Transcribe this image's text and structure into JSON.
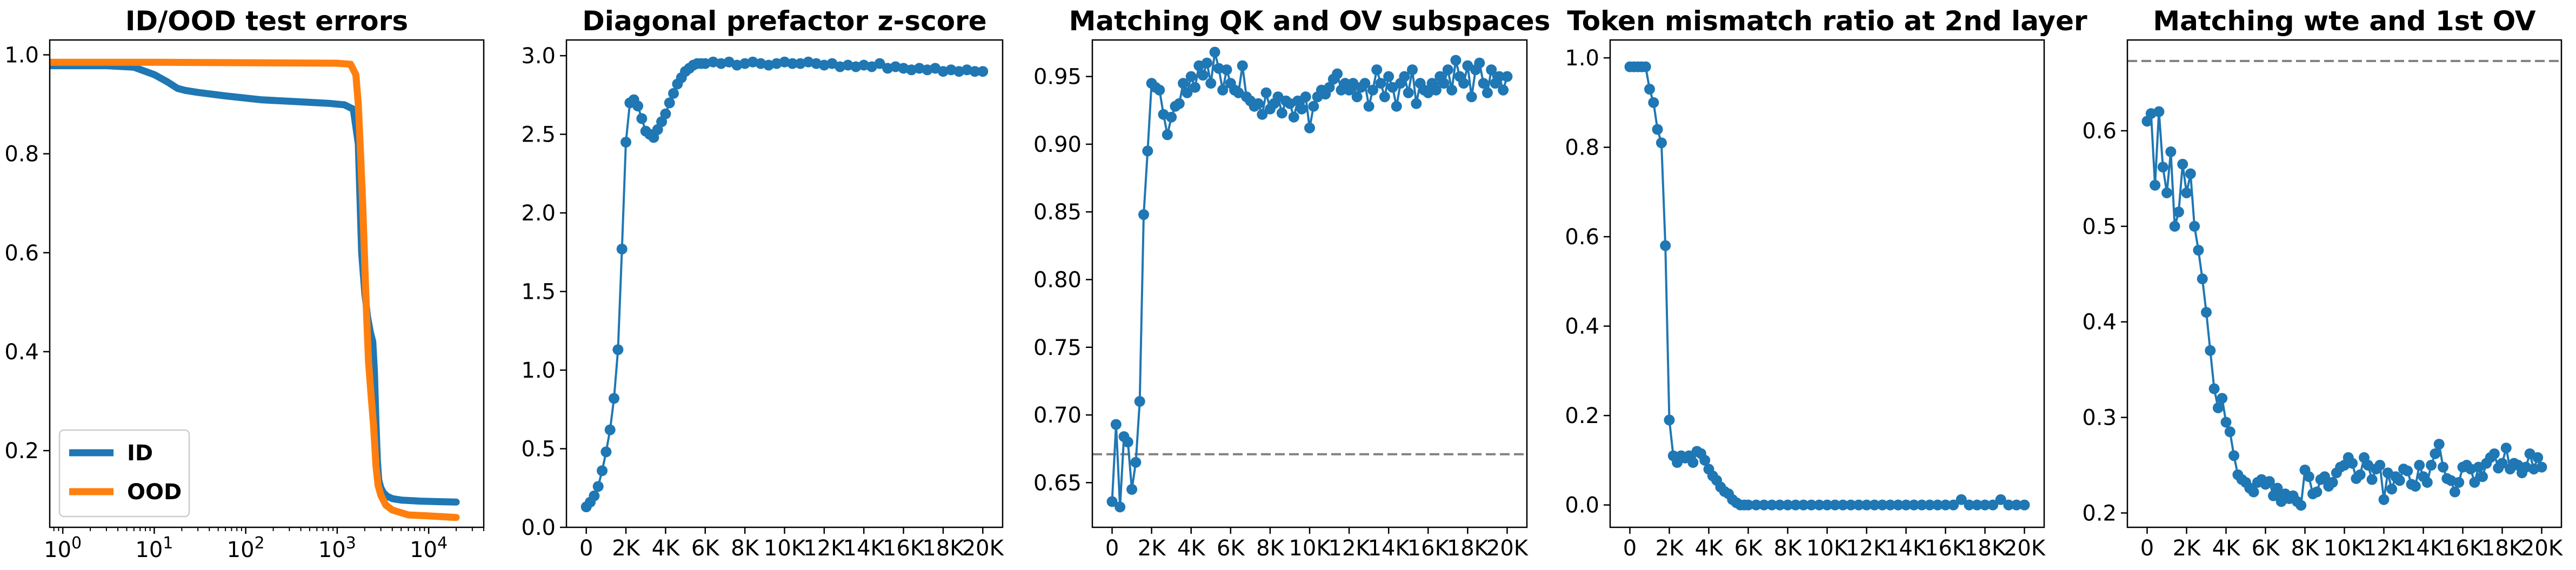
{
  "colors": {
    "blue": "#1f77b4",
    "orange": "#ff7f0e",
    "reference_line": "#808080"
  },
  "chart_data": [
    {
      "type": "line",
      "title": "ID/OOD test errors",
      "xscale": "log",
      "xlim": [
        0.72,
        40000
      ],
      "ylim": [
        0.045,
        1.03
      ],
      "xticks": [
        1,
        10,
        100,
        1000,
        10000
      ],
      "xtick_labels": [
        {
          "base": "10",
          "exp": "0"
        },
        {
          "base": "10",
          "exp": "1"
        },
        {
          "base": "10",
          "exp": "2"
        },
        {
          "base": "10",
          "exp": "3"
        },
        {
          "base": "10",
          "exp": "4"
        }
      ],
      "yticks": [
        0.2,
        0.4,
        0.6,
        0.8,
        1.0
      ],
      "ytick_labels": [
        "0.2",
        "0.4",
        "0.6",
        "0.8",
        "1.0"
      ],
      "legend": {
        "placement": "lower-left"
      },
      "series": [
        {
          "name": "ID",
          "color": "#1f77b4",
          "x": [
            0.72,
            3,
            6,
            10,
            14,
            18,
            22,
            30,
            60,
            150,
            400,
            800,
            1200,
            1500,
            1700,
            1850,
            2000,
            2150,
            2300,
            2450,
            2550,
            2650,
            2750,
            2850,
            3000,
            3200,
            3500,
            4000,
            5000,
            8000,
            12000,
            20000
          ],
          "y": [
            0.978,
            0.978,
            0.975,
            0.96,
            0.945,
            0.932,
            0.928,
            0.924,
            0.917,
            0.909,
            0.905,
            0.902,
            0.899,
            0.89,
            0.82,
            0.6,
            0.52,
            0.47,
            0.44,
            0.42,
            0.36,
            0.26,
            0.18,
            0.14,
            0.125,
            0.115,
            0.108,
            0.103,
            0.1,
            0.098,
            0.097,
            0.096
          ]
        },
        {
          "name": "OOD",
          "color": "#ff7f0e",
          "x": [
            0.72,
            10,
            100,
            1000,
            1400,
            1600,
            1700,
            1800,
            1900,
            2000,
            2100,
            2200,
            2350,
            2500,
            2650,
            2800,
            3000,
            3400,
            4000,
            6000,
            10000,
            20000
          ],
          "y": [
            0.985,
            0.985,
            0.984,
            0.983,
            0.981,
            0.96,
            0.9,
            0.8,
            0.7,
            0.58,
            0.47,
            0.38,
            0.31,
            0.25,
            0.17,
            0.13,
            0.11,
            0.09,
            0.08,
            0.07,
            0.068,
            0.065
          ]
        }
      ]
    },
    {
      "type": "line",
      "title": "Diagonal prefactor z-score",
      "xlim": [
        -1000,
        21000
      ],
      "ylim": [
        0,
        3.1
      ],
      "xticks": [
        0,
        2000,
        4000,
        6000,
        8000,
        10000,
        12000,
        14000,
        16000,
        18000,
        20000
      ],
      "xtick_labels": [
        "0",
        "2K",
        "4K",
        "6K",
        "8K",
        "10K",
        "12K",
        "14K",
        "16K",
        "18K",
        "20K"
      ],
      "yticks": [
        0.0,
        0.5,
        1.0,
        1.5,
        2.0,
        2.5,
        3.0
      ],
      "ytick_labels": [
        "0.0",
        "0.5",
        "1.0",
        "1.5",
        "2.0",
        "2.5",
        "3.0"
      ],
      "markers": true,
      "series": [
        {
          "color": "#1f77b4",
          "x": [
            0,
            200,
            400,
            600,
            800,
            1000,
            1200,
            1400,
            1600,
            1800,
            2000,
            2200,
            2400,
            2600,
            2800,
            3000,
            3200,
            3400,
            3600,
            3800,
            4000,
            4200,
            4400,
            4600,
            4800,
            5000,
            5200,
            5400,
            5600,
            5800,
            6000,
            6400,
            6800,
            7200,
            7600,
            8000,
            8400,
            8800,
            9200,
            9600,
            10000,
            10400,
            10800,
            11200,
            11600,
            12000,
            12400,
            12800,
            13200,
            13600,
            14000,
            14400,
            14800,
            15200,
            15600,
            16000,
            16400,
            16800,
            17200,
            17600,
            18000,
            18400,
            18800,
            19200,
            19600,
            20000
          ],
          "y": [
            0.13,
            0.16,
            0.2,
            0.26,
            0.36,
            0.48,
            0.62,
            0.82,
            1.13,
            1.77,
            2.45,
            2.7,
            2.72,
            2.68,
            2.6,
            2.52,
            2.5,
            2.48,
            2.53,
            2.58,
            2.63,
            2.7,
            2.76,
            2.82,
            2.86,
            2.9,
            2.92,
            2.94,
            2.95,
            2.95,
            2.95,
            2.96,
            2.95,
            2.96,
            2.94,
            2.95,
            2.96,
            2.95,
            2.94,
            2.95,
            2.96,
            2.95,
            2.95,
            2.96,
            2.95,
            2.94,
            2.95,
            2.93,
            2.94,
            2.93,
            2.94,
            2.93,
            2.95,
            2.92,
            2.93,
            2.92,
            2.91,
            2.92,
            2.91,
            2.92,
            2.9,
            2.91,
            2.9,
            2.91,
            2.9,
            2.9
          ]
        }
      ]
    },
    {
      "type": "line",
      "title": "Matching QK and OV subspaces",
      "xlim": [
        -1000,
        21000
      ],
      "ylim": [
        0.617,
        0.977
      ],
      "xticks": [
        0,
        2000,
        4000,
        6000,
        8000,
        10000,
        12000,
        14000,
        16000,
        18000,
        20000
      ],
      "xtick_labels": [
        "0",
        "2K",
        "4K",
        "6K",
        "8K",
        "10K",
        "12K",
        "14K",
        "16K",
        "18K",
        "20K"
      ],
      "yticks": [
        0.65,
        0.7,
        0.75,
        0.8,
        0.85,
        0.9,
        0.95
      ],
      "ytick_labels": [
        "0.65",
        "0.70",
        "0.75",
        "0.80",
        "0.85",
        "0.90",
        "0.95"
      ],
      "markers": true,
      "reference_line": {
        "y": 0.671,
        "style": "dashed",
        "color": "#808080"
      },
      "series": [
        {
          "color": "#1f77b4",
          "x": [
            0,
            200,
            400,
            600,
            800,
            1000,
            1200,
            1400,
            1600,
            1800,
            2000,
            2200,
            2400,
            2600,
            2800,
            3000,
            3200,
            3400,
            3600,
            3800,
            4000,
            4200,
            4400,
            4600,
            4800,
            5000,
            5200,
            5400,
            5600,
            5800,
            6000,
            6200,
            6400,
            6600,
            6800,
            7000,
            7200,
            7400,
            7600,
            7800,
            8000,
            8200,
            8400,
            8600,
            8800,
            9000,
            9200,
            9400,
            9600,
            9800,
            10000,
            10200,
            10400,
            10600,
            10800,
            11000,
            11200,
            11400,
            11600,
            11800,
            12000,
            12200,
            12400,
            12600,
            12800,
            13000,
            13200,
            13400,
            13600,
            13800,
            14000,
            14200,
            14400,
            14600,
            14800,
            15000,
            15200,
            15400,
            15600,
            15800,
            16000,
            16200,
            16400,
            16600,
            16800,
            17000,
            17200,
            17400,
            17600,
            17800,
            18000,
            18200,
            18400,
            18600,
            18800,
            19000,
            19200,
            19400,
            19600,
            19800,
            20000
          ],
          "y": [
            0.636,
            0.693,
            0.632,
            0.684,
            0.68,
            0.645,
            0.665,
            0.71,
            0.848,
            0.895,
            0.945,
            0.942,
            0.94,
            0.922,
            0.907,
            0.92,
            0.928,
            0.93,
            0.945,
            0.938,
            0.95,
            0.942,
            0.958,
            0.951,
            0.96,
            0.945,
            0.968,
            0.956,
            0.94,
            0.955,
            0.945,
            0.94,
            0.938,
            0.958,
            0.935,
            0.932,
            0.928,
            0.93,
            0.922,
            0.938,
            0.926,
            0.93,
            0.935,
            0.923,
            0.932,
            0.93,
            0.92,
            0.932,
            0.926,
            0.935,
            0.912,
            0.928,
            0.935,
            0.94,
            0.937,
            0.942,
            0.948,
            0.952,
            0.94,
            0.945,
            0.94,
            0.945,
            0.935,
            0.942,
            0.945,
            0.928,
            0.94,
            0.955,
            0.945,
            0.935,
            0.95,
            0.942,
            0.928,
            0.945,
            0.95,
            0.938,
            0.955,
            0.93,
            0.945,
            0.94,
            0.938,
            0.945,
            0.94,
            0.95,
            0.945,
            0.955,
            0.94,
            0.962,
            0.95,
            0.945,
            0.958,
            0.935,
            0.955,
            0.96,
            0.945,
            0.938,
            0.955,
            0.945,
            0.95,
            0.94,
            0.95
          ]
        }
      ]
    },
    {
      "type": "line",
      "title": "Token mismatch ratio at 2nd layer",
      "xlim": [
        -1000,
        21000
      ],
      "ylim": [
        -0.05,
        1.04
      ],
      "xticks": [
        0,
        2000,
        4000,
        6000,
        8000,
        10000,
        12000,
        14000,
        16000,
        18000,
        20000
      ],
      "xtick_labels": [
        "0",
        "2K",
        "4K",
        "6K",
        "8K",
        "10K",
        "12K",
        "14K",
        "16K",
        "18K",
        "20K"
      ],
      "yticks": [
        0.0,
        0.2,
        0.4,
        0.6,
        0.8,
        1.0
      ],
      "ytick_labels": [
        "0.0",
        "0.2",
        "0.4",
        "0.6",
        "0.8",
        "1.0"
      ],
      "markers": true,
      "series": [
        {
          "color": "#1f77b4",
          "x": [
            0,
            200,
            400,
            600,
            800,
            1000,
            1200,
            1400,
            1600,
            1800,
            2000,
            2200,
            2400,
            2600,
            2800,
            3000,
            3200,
            3400,
            3600,
            3800,
            4000,
            4200,
            4400,
            4600,
            4800,
            5000,
            5200,
            5400,
            5600,
            5800,
            6000,
            6400,
            6800,
            7200,
            7600,
            8000,
            8400,
            8800,
            9200,
            9600,
            10000,
            10400,
            10800,
            11200,
            11600,
            12000,
            12400,
            12800,
            13200,
            13600,
            14000,
            14400,
            14800,
            15200,
            15600,
            16000,
            16400,
            16800,
            17200,
            17600,
            18000,
            18400,
            18800,
            19200,
            19600,
            20000
          ],
          "y": [
            0.98,
            0.98,
            0.98,
            0.98,
            0.98,
            0.93,
            0.9,
            0.84,
            0.81,
            0.58,
            0.19,
            0.11,
            0.095,
            0.11,
            0.105,
            0.11,
            0.095,
            0.12,
            0.115,
            0.1,
            0.08,
            0.065,
            0.055,
            0.04,
            0.03,
            0.025,
            0.012,
            0.005,
            0.0,
            0.0,
            0.0,
            0.0,
            0.0,
            0.0,
            0.0,
            0.0,
            0.0,
            0.0,
            0.0,
            0.0,
            0.0,
            0.0,
            0.0,
            0.0,
            0.0,
            0.0,
            0.0,
            0.0,
            0.0,
            0.0,
            0.0,
            0.0,
            0.0,
            0.0,
            0.0,
            0.0,
            0.0,
            0.012,
            0.0,
            0.0,
            0.0,
            0.0,
            0.012,
            0.0,
            0.0,
            0.0
          ]
        }
      ]
    },
    {
      "type": "line",
      "title": "Matching wte and 1st OV",
      "xlim": [
        -1000,
        21000
      ],
      "ylim": [
        0.185,
        0.695
      ],
      "xticks": [
        0,
        2000,
        4000,
        6000,
        8000,
        10000,
        12000,
        14000,
        16000,
        18000,
        20000
      ],
      "xtick_labels": [
        "0",
        "2K",
        "4K",
        "6K",
        "8K",
        "10K",
        "12K",
        "14K",
        "16K",
        "18K",
        "20K"
      ],
      "yticks": [
        0.2,
        0.3,
        0.4,
        0.5,
        0.6
      ],
      "ytick_labels": [
        "0.2",
        "0.3",
        "0.4",
        "0.5",
        "0.6"
      ],
      "markers": true,
      "reference_line": {
        "y": 0.673,
        "style": "dashed",
        "color": "#808080"
      },
      "series": [
        {
          "color": "#1f77b4",
          "x": [
            0,
            200,
            400,
            600,
            800,
            1000,
            1200,
            1400,
            1600,
            1800,
            2000,
            2200,
            2400,
            2600,
            2800,
            3000,
            3200,
            3400,
            3600,
            3800,
            4000,
            4200,
            4400,
            4600,
            4800,
            5000,
            5200,
            5400,
            5600,
            5800,
            6000,
            6200,
            6400,
            6600,
            6800,
            7000,
            7200,
            7400,
            7600,
            7800,
            8000,
            8200,
            8400,
            8600,
            8800,
            9000,
            9200,
            9400,
            9600,
            9800,
            10000,
            10200,
            10400,
            10600,
            10800,
            11000,
            11200,
            11400,
            11600,
            11800,
            12000,
            12200,
            12400,
            12600,
            12800,
            13000,
            13200,
            13400,
            13600,
            13800,
            14000,
            14200,
            14400,
            14600,
            14800,
            15000,
            15200,
            15400,
            15600,
            15800,
            16000,
            16200,
            16400,
            16600,
            16800,
            17000,
            17200,
            17400,
            17600,
            17800,
            18000,
            18200,
            18400,
            18600,
            18800,
            19000,
            19200,
            19400,
            19600,
            19800,
            20000
          ],
          "y": [
            0.61,
            0.618,
            0.543,
            0.62,
            0.562,
            0.535,
            0.578,
            0.5,
            0.515,
            0.565,
            0.535,
            0.555,
            0.5,
            0.475,
            0.445,
            0.41,
            0.37,
            0.33,
            0.31,
            0.32,
            0.295,
            0.285,
            0.26,
            0.24,
            0.235,
            0.232,
            0.226,
            0.222,
            0.232,
            0.235,
            0.23,
            0.233,
            0.218,
            0.226,
            0.212,
            0.22,
            0.215,
            0.218,
            0.212,
            0.208,
            0.245,
            0.238,
            0.22,
            0.222,
            0.235,
            0.238,
            0.228,
            0.232,
            0.242,
            0.248,
            0.25,
            0.258,
            0.252,
            0.236,
            0.24,
            0.258,
            0.25,
            0.235,
            0.246,
            0.25,
            0.214,
            0.242,
            0.225,
            0.238,
            0.234,
            0.246,
            0.244,
            0.23,
            0.228,
            0.25,
            0.238,
            0.232,
            0.25,
            0.262,
            0.272,
            0.248,
            0.236,
            0.234,
            0.222,
            0.232,
            0.248,
            0.25,
            0.246,
            0.232,
            0.248,
            0.238,
            0.252,
            0.258,
            0.262,
            0.247,
            0.252,
            0.268,
            0.246,
            0.252,
            0.25,
            0.242,
            0.248,
            0.262,
            0.246,
            0.258,
            0.248
          ]
        }
      ]
    }
  ]
}
